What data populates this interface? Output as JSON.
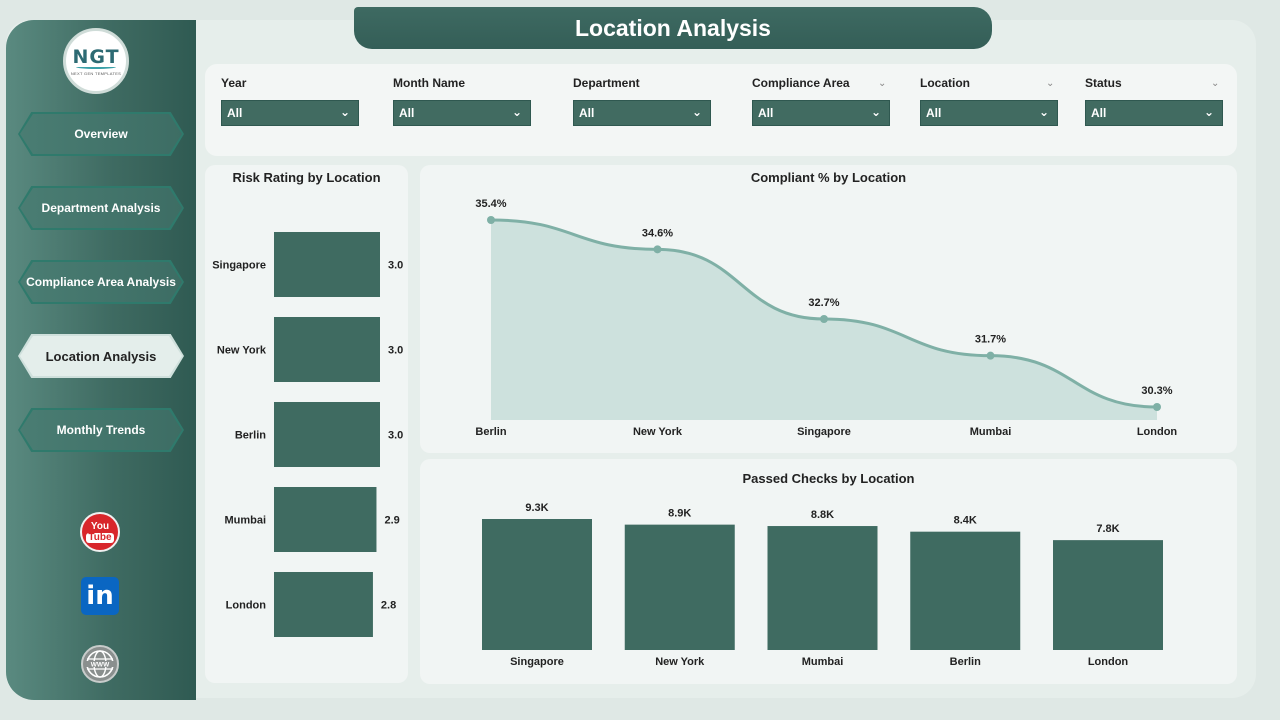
{
  "header": {
    "title": "Location Analysis"
  },
  "logo": {
    "text": "NGT",
    "subtext": "NEXT GEN TEMPLATES"
  },
  "nav": [
    {
      "label": "Overview",
      "active": false
    },
    {
      "label": "Department Analysis",
      "active": false
    },
    {
      "label": "Compliance Area Analysis",
      "active": false
    },
    {
      "label": "Location Analysis",
      "active": true
    },
    {
      "label": "Monthly Trends",
      "active": false
    }
  ],
  "social": {
    "youtube_top": "You",
    "youtube_bottom": "Tube",
    "linkedin": "in"
  },
  "filters": [
    {
      "label": "Year",
      "value": "All"
    },
    {
      "label": "Month Name",
      "value": "All"
    },
    {
      "label": "Department",
      "value": "All"
    },
    {
      "label": "Compliance Area",
      "value": "All"
    },
    {
      "label": "Location",
      "value": "All"
    },
    {
      "label": "Status",
      "value": "All"
    }
  ],
  "colors": {
    "accent": "#416b61",
    "bar": "#3f6b61",
    "line": "#7fb0a6",
    "area": "#c9dfda"
  },
  "chart_data": [
    {
      "type": "bar",
      "orientation": "horizontal",
      "title": "Risk Rating by Location",
      "categories": [
        "Singapore",
        "New York",
        "Berlin",
        "Mumbai",
        "London"
      ],
      "values": [
        3.0,
        3.0,
        3.0,
        2.9,
        2.8
      ],
      "labels": [
        "3.0",
        "3.0",
        "3.0",
        "2.9",
        "2.8"
      ]
    },
    {
      "type": "area",
      "title": "Compliant % by Location",
      "categories": [
        "Berlin",
        "New York",
        "Singapore",
        "Mumbai",
        "London"
      ],
      "values": [
        35.4,
        34.6,
        32.7,
        31.7,
        30.3
      ],
      "labels": [
        "35.4%",
        "34.6%",
        "32.7%",
        "31.7%",
        "30.3%"
      ]
    },
    {
      "type": "bar",
      "title": "Passed Checks by Location",
      "categories": [
        "Singapore",
        "New York",
        "Mumbai",
        "Berlin",
        "London"
      ],
      "values": [
        9300,
        8900,
        8800,
        8400,
        7800
      ],
      "labels": [
        "9.3K",
        "8.9K",
        "8.8K",
        "8.4K",
        "7.8K"
      ]
    }
  ]
}
